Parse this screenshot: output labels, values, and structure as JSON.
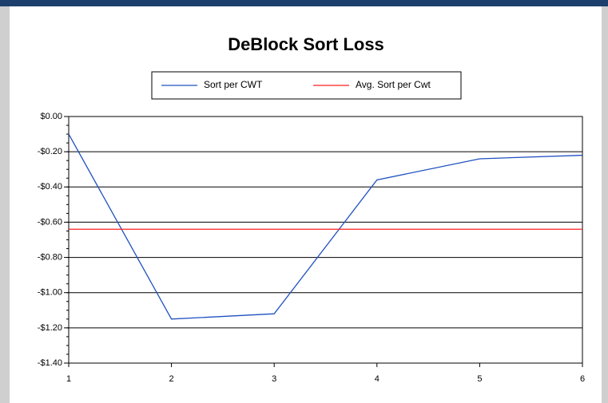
{
  "chart_data": {
    "type": "line",
    "title": "DeBlock Sort Loss",
    "x": [
      1,
      2,
      3,
      4,
      5,
      6
    ],
    "series": [
      {
        "name": "Sort per CWT",
        "color": "#2050c0",
        "values": [
          -0.1,
          -1.15,
          -1.12,
          -0.36,
          -0.24,
          -0.22
        ]
      },
      {
        "name": "Avg. Sort per Cwt",
        "color": "#ff2020",
        "values": [
          -0.64,
          -0.64,
          -0.64,
          -0.64,
          -0.64,
          -0.64
        ]
      }
    ],
    "xlim": [
      1,
      6
    ],
    "xticks": [
      1,
      2,
      3,
      4,
      5,
      6
    ],
    "ylim": [
      -1.4,
      0
    ],
    "yticks": [
      {
        "value": 0,
        "label": "$0.00"
      },
      {
        "value": -0.2,
        "label": "-$0.20"
      },
      {
        "value": -0.4,
        "label": "-$0.40"
      },
      {
        "value": -0.6,
        "label": "-$0.60"
      },
      {
        "value": -0.8,
        "label": "-$0.80"
      },
      {
        "value": -1.0,
        "label": "-$1.00"
      },
      {
        "value": -1.2,
        "label": "-$1.20"
      },
      {
        "value": -1.4,
        "label": "-$1.40"
      }
    ],
    "grid": true,
    "legend": "top"
  }
}
